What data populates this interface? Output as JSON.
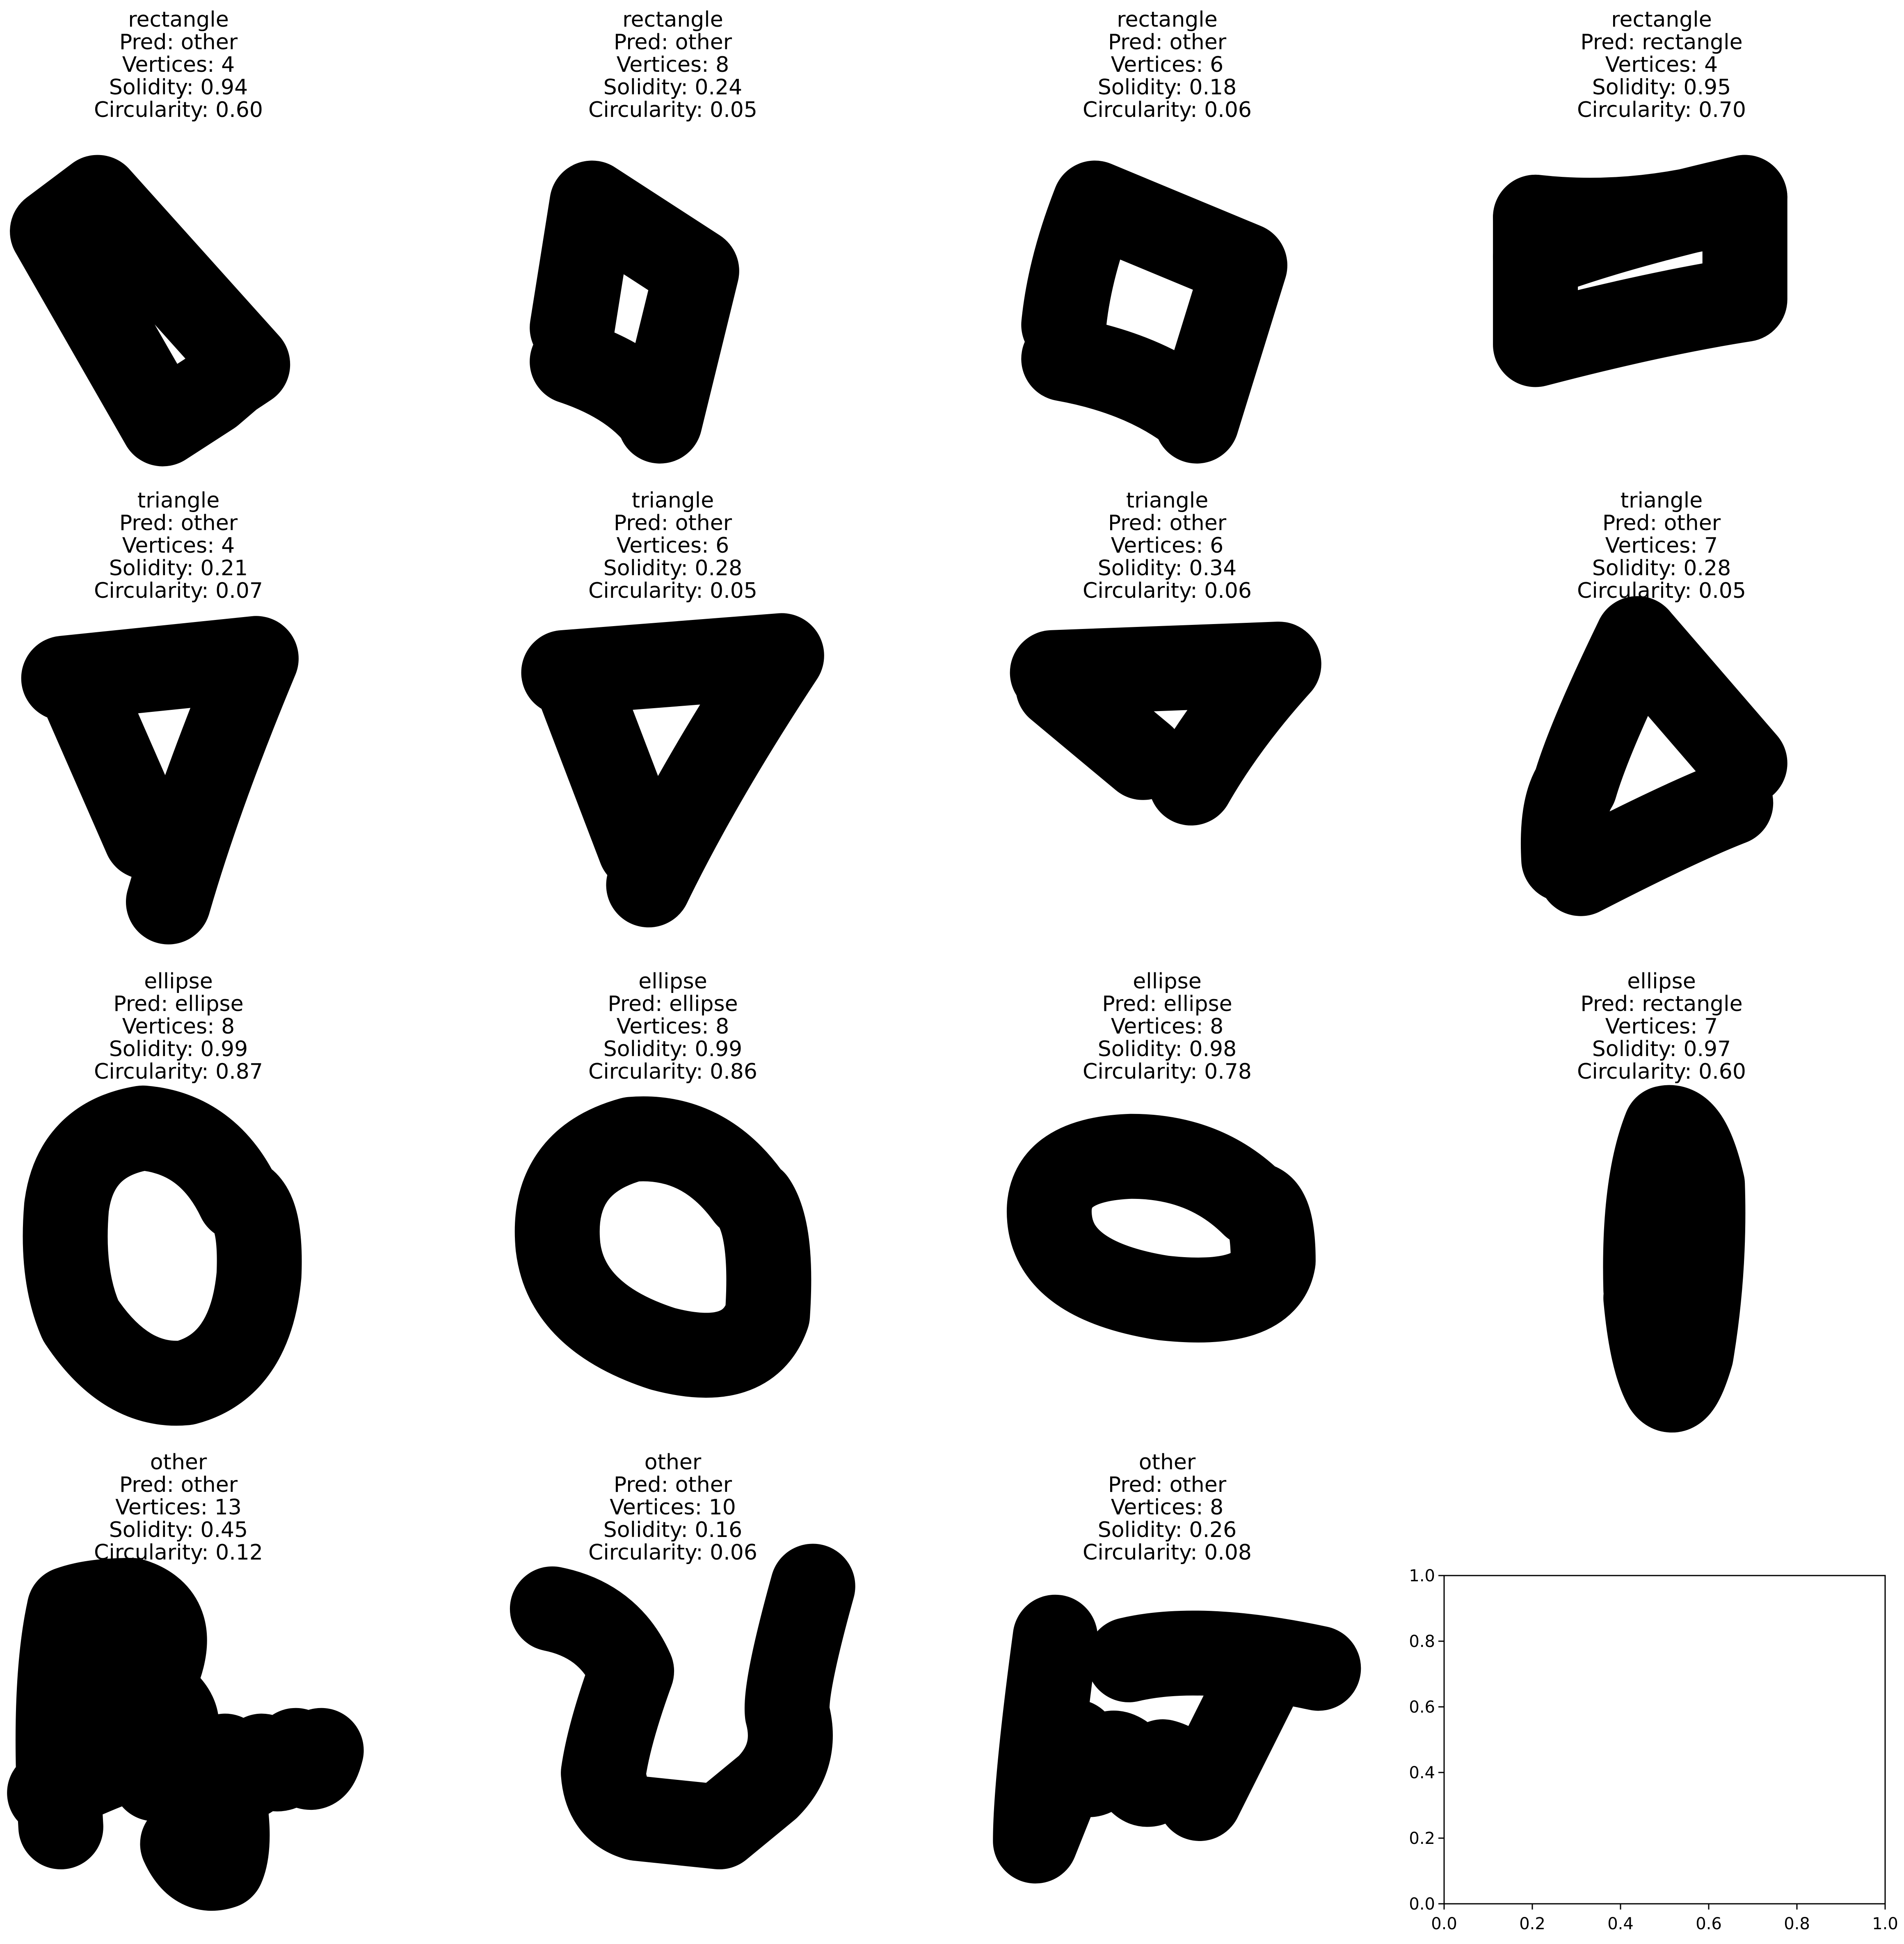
{
  "chart_data": [
    {
      "type": "image",
      "title": "rectangle\nPred: other\nVertices: 4\nSolidity: 0.94\nCircularity: 0.60",
      "shape": "rect-diagonal"
    },
    {
      "type": "image",
      "title": "rectangle\nPred: other\nVertices: 8\nSolidity: 0.24\nCircularity: 0.05",
      "shape": "rect-open-a"
    },
    {
      "type": "image",
      "title": "rectangle\nPred: other\nVertices: 6\nSolidity: 0.18\nCircularity: 0.06",
      "shape": "rect-open-b"
    },
    {
      "type": "image",
      "title": "rectangle\nPred: rectangle\nVertices: 4\nSolidity: 0.95\nCircularity: 0.70",
      "shape": "rect-flag"
    },
    {
      "type": "image",
      "title": "triangle\nPred: other\nVertices: 4\nSolidity: 0.21\nCircularity: 0.07",
      "shape": "tri-a"
    },
    {
      "type": "image",
      "title": "triangle\nPred: other\nVertices: 6\nSolidity: 0.28\nCircularity: 0.05",
      "shape": "tri-b"
    },
    {
      "type": "image",
      "title": "triangle\nPred: other\nVertices: 6\nSolidity: 0.34\nCircularity: 0.06",
      "shape": "tri-c"
    },
    {
      "type": "image",
      "title": "triangle\nPred: other\nVertices: 7\nSolidity: 0.28\nCircularity: 0.05",
      "shape": "tri-d"
    },
    {
      "type": "image",
      "title": "ellipse\nPred: ellipse\nVertices: 8\nSolidity: 0.99\nCircularity: 0.87",
      "shape": "ell-a"
    },
    {
      "type": "image",
      "title": "ellipse\nPred: ellipse\nVertices: 8\nSolidity: 0.99\nCircularity: 0.86",
      "shape": "ell-b"
    },
    {
      "type": "image",
      "title": "ellipse\nPred: ellipse\nVertices: 8\nSolidity: 0.98\nCircularity: 0.78",
      "shape": "ell-c"
    },
    {
      "type": "image",
      "title": "ellipse\nPred: rectangle\nVertices: 7\nSolidity: 0.97\nCircularity: 0.60",
      "shape": "ell-d"
    },
    {
      "type": "image",
      "title": "other\nPred: other\nVertices: 13\nSolidity: 0.45\nCircularity: 0.12",
      "shape": "other-a"
    },
    {
      "type": "image",
      "title": "other\nPred: other\nVertices: 10\nSolidity: 0.16\nCircularity: 0.06",
      "shape": "other-b"
    },
    {
      "type": "image",
      "title": "other\nPred: other\nVertices: 8\nSolidity: 0.26\nCircularity: 0.08",
      "shape": "other-c"
    },
    {
      "type": "scatter",
      "title": "",
      "xlabel": "",
      "ylabel": "",
      "xlim": [
        0.0,
        1.0
      ],
      "ylim": [
        0.0,
        1.0
      ],
      "xticks": [
        "0.0",
        "0.2",
        "0.4",
        "0.6",
        "0.8",
        "1.0"
      ],
      "yticks": [
        "0.0",
        "0.2",
        "0.4",
        "0.6",
        "0.8",
        "1.0"
      ],
      "series": []
    }
  ]
}
